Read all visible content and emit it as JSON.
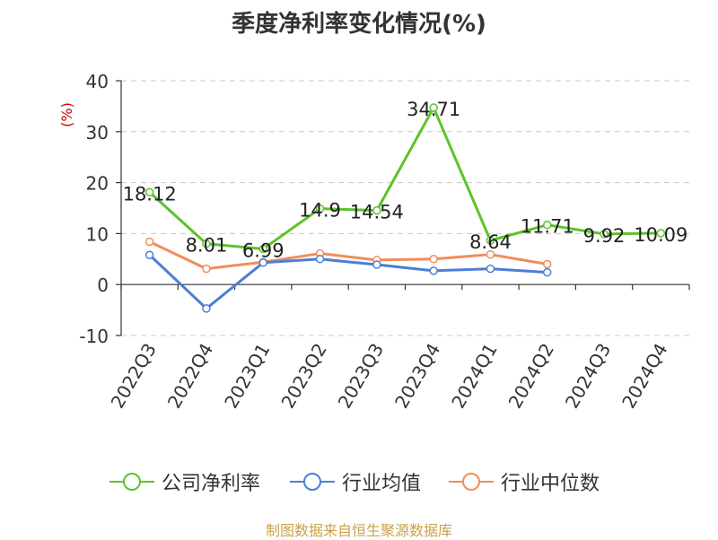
{
  "page": {
    "title": "季度净利率变化情况(%)",
    "source": "制图数据来自恒生聚源数据库"
  },
  "chart_data": {
    "type": "line",
    "title": "季度净利率变化情况(%)",
    "ylabel": "(%)",
    "ylim": [
      -10,
      40
    ],
    "yticks": [
      -10,
      0,
      10,
      20,
      30,
      40
    ],
    "grid": true,
    "legend_position": "bottom",
    "categories": [
      "2022Q3",
      "2022Q4",
      "2023Q1",
      "2023Q2",
      "2023Q3",
      "2023Q4",
      "2024Q1",
      "2024Q2",
      "2024Q3",
      "2024Q4"
    ],
    "series": [
      {
        "name": "公司净利率",
        "color": "#5cc32a",
        "values": [
          18.12,
          8.01,
          6.99,
          14.9,
          14.54,
          34.71,
          8.64,
          11.71,
          9.92,
          10.09
        ],
        "labels": [
          "18.12",
          "8.01",
          "6.99",
          "14.9",
          "14.54",
          "34.71",
          "8.64",
          "11.71",
          "9.92",
          "10.09"
        ]
      },
      {
        "name": "行业均值",
        "color": "#4a7fd6",
        "values": [
          5.8,
          -4.7,
          4.3,
          5.0,
          3.9,
          2.7,
          3.1,
          2.4,
          null,
          null
        ]
      },
      {
        "name": "行业中位数",
        "color": "#f28c5a",
        "values": [
          8.4,
          3.1,
          4.4,
          6.1,
          4.8,
          5.0,
          5.9,
          4.0,
          null,
          null
        ]
      }
    ]
  }
}
